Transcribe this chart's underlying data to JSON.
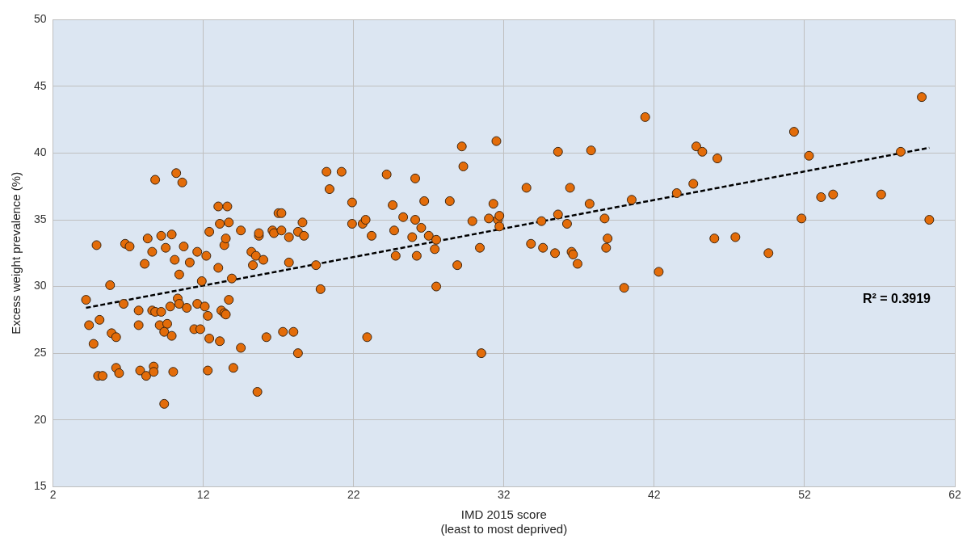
{
  "chart_data": {
    "type": "scatter",
    "xlabel": "IMD 2015 score\n(least to most deprived)",
    "ylabel": "Excess weight prevalence (%)",
    "xlim": [
      2,
      62
    ],
    "xticks": [
      2,
      12,
      22,
      32,
      42,
      52,
      62
    ],
    "ylim": [
      15,
      50
    ],
    "yticks": [
      15,
      20,
      25,
      30,
      35,
      40,
      45,
      50
    ],
    "grid": true,
    "legend": false,
    "marker": "circle",
    "annotations": [
      "R² = 0.3919"
    ],
    "series": [
      {
        "color": "#e36c09",
        "x": [
          4.2,
          4.4,
          4.7,
          4.9,
          5.1,
          5.0,
          5.3,
          5.8,
          5.9,
          6.2,
          6.2,
          6.4,
          6.8,
          6.7,
          7.1,
          7.7,
          7.7,
          7.8,
          8.1,
          8.2,
          8.3,
          8.6,
          8.6,
          8.8,
          8.8,
          8.7,
          8.7,
          9.2,
          9.1,
          9.2,
          9.4,
          9.5,
          9.6,
          9.4,
          9.8,
          9.9,
          9.9,
          10.0,
          10.1,
          10.2,
          10.3,
          10.4,
          10.4,
          10.6,
          10.7,
          10.9,
          11.1,
          11.4,
          11.6,
          11.6,
          11.8,
          11.9,
          12.1,
          12.2,
          12.3,
          12.3,
          12.4,
          12.4,
          13.0,
          13.0,
          13.1,
          13.1,
          13.2,
          13.4,
          13.4,
          13.5,
          13.6,
          13.7,
          13.5,
          13.7,
          13.9,
          14.0,
          14.5,
          14.5,
          15.2,
          15.3,
          15.5,
          15.6,
          15.7,
          15.7,
          16.0,
          16.2,
          16.6,
          16.7,
          17.0,
          17.2,
          17.2,
          17.3,
          17.7,
          17.7,
          18.0,
          18.3,
          18.3,
          18.6,
          18.7,
          19.5,
          19.8,
          20.2,
          20.4,
          21.2,
          21.9,
          21.9,
          22.6,
          22.8,
          22.9,
          23.2,
          24.2,
          24.6,
          24.7,
          24.8,
          25.3,
          25.9,
          26.1,
          26.1,
          26.2,
          26.5,
          26.7,
          27.0,
          27.4,
          27.5,
          27.5,
          28.4,
          28.9,
          29.2,
          29.3,
          29.9,
          30.4,
          30.5,
          31.0,
          31.3,
          31.5,
          31.6,
          31.7,
          31.7,
          33.5,
          33.8,
          34.5,
          34.6,
          35.4,
          35.6,
          35.6,
          36.2,
          36.4,
          36.5,
          36.6,
          36.9,
          37.7,
          37.8,
          38.7,
          38.8,
          38.9,
          40.0,
          40.5,
          41.4,
          42.3,
          43.5,
          44.6,
          44.8,
          45.2,
          46.0,
          46.2,
          47.4,
          49.6,
          51.3,
          51.8,
          52.3,
          53.1,
          53.9,
          57.1,
          58.4,
          59.8,
          60.3
        ],
        "values": [
          29.0,
          27.1,
          25.7,
          33.1,
          27.5,
          23.3,
          23.3,
          30.1,
          26.5,
          26.2,
          23.9,
          23.5,
          33.2,
          28.7,
          33.0,
          28.2,
          27.1,
          23.7,
          31.7,
          23.3,
          33.6,
          32.6,
          28.2,
          38.0,
          28.1,
          24.0,
          23.6,
          33.8,
          27.1,
          28.1,
          21.2,
          32.9,
          27.2,
          26.6,
          28.5,
          26.3,
          33.9,
          23.6,
          32.0,
          38.5,
          29.1,
          28.7,
          30.9,
          37.8,
          33.0,
          28.4,
          31.8,
          26.8,
          28.7,
          32.6,
          26.8,
          30.4,
          28.5,
          32.3,
          27.8,
          23.7,
          34.1,
          26.1,
          36.0,
          31.4,
          25.9,
          34.7,
          28.2,
          33.1,
          28.0,
          33.6,
          36.0,
          29.0,
          27.9,
          34.8,
          30.6,
          23.9,
          34.2,
          25.4,
          32.6,
          31.6,
          32.3,
          22.1,
          33.8,
          34.0,
          32.0,
          26.2,
          34.2,
          34.0,
          35.5,
          35.5,
          34.2,
          26.6,
          31.8,
          33.7,
          26.6,
          34.1,
          25.0,
          34.8,
          33.8,
          31.6,
          29.8,
          38.6,
          37.3,
          38.6,
          34.7,
          36.3,
          34.7,
          35.0,
          26.2,
          33.8,
          38.4,
          36.1,
          34.2,
          32.3,
          35.2,
          33.7,
          38.1,
          35.0,
          32.3,
          34.4,
          36.4,
          33.8,
          32.8,
          30.0,
          33.5,
          36.4,
          31.6,
          40.5,
          39.0,
          34.9,
          32.9,
          25.0,
          35.1,
          36.2,
          40.9,
          35.0,
          35.3,
          34.5,
          37.4,
          33.2,
          34.9,
          32.9,
          32.5,
          40.1,
          35.4,
          34.7,
          37.4,
          32.6,
          32.4,
          31.7,
          36.2,
          40.2,
          35.1,
          32.9,
          33.6,
          29.9,
          36.5,
          42.7,
          31.1,
          37.0,
          37.7,
          40.5,
          40.1,
          33.6,
          39.6,
          33.7,
          32.5,
          41.6,
          35.1,
          39.8,
          36.7,
          36.9,
          36.9,
          40.1,
          44.2,
          35.0
        ]
      },
      {
        "type": "line",
        "color": "#000000",
        "line_style": "dashed",
        "marker": "none",
        "x": [
          4.2,
          60.3
        ],
        "values": [
          28.4,
          40.4
        ]
      }
    ]
  }
}
